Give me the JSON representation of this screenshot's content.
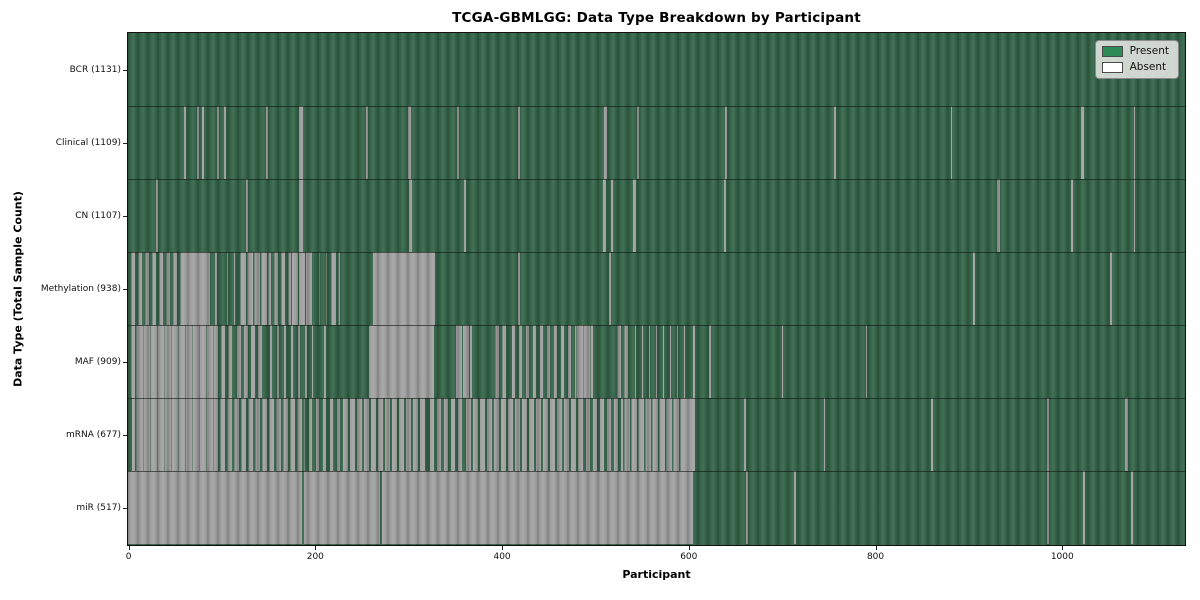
{
  "title": "TCGA-GBMLGG: Data Type Breakdown by Participant",
  "axes": {
    "xlabel": "Participant",
    "ylabel": "Data Type (Total Sample Count)"
  },
  "legend": {
    "present_label": "Present",
    "absent_label": "Absent"
  },
  "colors": {
    "present_legend": "#2e8b57",
    "absent_legend": "#ffffff",
    "present_plot": "#35654a",
    "absent_plot": "#a3a3a3"
  },
  "chart_data": {
    "type": "heatmap",
    "title": "TCGA-GBMLGG: Data Type Breakdown by Participant",
    "xlabel": "Participant",
    "ylabel": "Data Type (Total Sample Count)",
    "x_range": [
      0,
      1131
    ],
    "x_ticks": [
      0,
      200,
      400,
      600,
      800,
      1000
    ],
    "legend_entries": [
      "Present",
      "Absent"
    ],
    "rows": [
      {
        "label": "BCR (1131)",
        "data_type": "BCR",
        "total_samples": 1131,
        "spans": []
      },
      {
        "label": "Clinical (1109)",
        "data_type": "Clinical",
        "total_samples": 1109,
        "spans": [
          [
            60,
            62,
            0
          ],
          [
            74,
            76,
            0
          ],
          [
            79,
            81,
            0
          ],
          [
            95,
            97,
            0
          ],
          [
            103,
            105,
            0
          ],
          [
            148,
            150,
            0
          ],
          [
            183,
            187,
            0
          ],
          [
            255,
            257,
            0
          ],
          [
            300,
            303,
            0
          ],
          [
            352,
            354,
            0
          ],
          [
            418,
            420,
            0
          ],
          [
            510,
            513,
            0
          ],
          [
            545,
            547,
            0
          ],
          [
            639,
            642,
            0
          ],
          [
            756,
            758,
            0
          ],
          [
            881,
            883,
            0
          ],
          [
            1021,
            1024,
            0
          ],
          [
            1077,
            1079,
            0
          ]
        ]
      },
      {
        "label": "CN (1107)",
        "data_type": "CN",
        "total_samples": 1107,
        "spans": [
          [
            30,
            32,
            0
          ],
          [
            126,
            129,
            0
          ],
          [
            183,
            187,
            0
          ],
          [
            301,
            304,
            0
          ],
          [
            360,
            362,
            0
          ],
          [
            509,
            512,
            0
          ],
          [
            517,
            519,
            0
          ],
          [
            541,
            544,
            0
          ],
          [
            638,
            641,
            0
          ],
          [
            931,
            934,
            0
          ],
          [
            1010,
            1012,
            0
          ],
          [
            1077,
            1079,
            0
          ]
        ]
      },
      {
        "label": "Methylation (938)",
        "data_type": "Methylation",
        "total_samples": 938,
        "spans": [
          [
            0,
            58,
            0.5
          ],
          [
            58,
            88,
            0.02
          ],
          [
            88,
            100,
            0.75
          ],
          [
            100,
            119,
            0.85
          ],
          [
            119,
            153,
            0.22
          ],
          [
            153,
            175,
            0.5
          ],
          [
            175,
            198,
            0.12
          ],
          [
            198,
            215,
            0.9
          ],
          [
            215,
            227,
            0.35
          ],
          [
            262,
            329,
            0.02
          ],
          [
            418,
            420,
            0
          ],
          [
            515,
            517,
            0
          ],
          [
            905,
            907,
            0
          ],
          [
            1052,
            1054,
            0
          ]
        ]
      },
      {
        "label": "MAF (909)",
        "data_type": "MAF",
        "total_samples": 909,
        "spans": [
          [
            0,
            9,
            0.5
          ],
          [
            9,
            96,
            0.1
          ],
          [
            96,
            113,
            0.5
          ],
          [
            113,
            147,
            0.4
          ],
          [
            147,
            198,
            0.7
          ],
          [
            210,
            212,
            0
          ],
          [
            258,
            328,
            0.02
          ],
          [
            350,
            368,
            0.15
          ],
          [
            390,
            407,
            0.5
          ],
          [
            407,
            480,
            0.55
          ],
          [
            480,
            498,
            0.08
          ],
          [
            520,
            537,
            0.5
          ],
          [
            537,
            600,
            0.85
          ],
          [
            605,
            607,
            0
          ],
          [
            622,
            624,
            0
          ],
          [
            700,
            702,
            0
          ],
          [
            790,
            792,
            0
          ]
        ]
      },
      {
        "label": "mRNA (677)",
        "data_type": "mRNA",
        "total_samples": 677,
        "spans": [
          [
            0,
            9,
            0.6
          ],
          [
            9,
            96,
            0.07
          ],
          [
            96,
            190,
            0.35
          ],
          [
            190,
            228,
            0.55
          ],
          [
            228,
            320,
            0.3
          ],
          [
            320,
            360,
            0.45
          ],
          [
            360,
            487,
            0.3
          ],
          [
            487,
            530,
            0.45
          ],
          [
            530,
            596,
            0.25
          ],
          [
            596,
            607,
            0.02
          ],
          [
            660,
            662,
            0
          ],
          [
            745,
            747,
            0
          ],
          [
            860,
            862,
            0
          ],
          [
            984,
            986,
            0
          ],
          [
            1068,
            1071,
            0
          ]
        ]
      },
      {
        "label": "miR (517)",
        "data_type": "miR",
        "total_samples": 517,
        "spans": [
          [
            0,
            605,
            0.015
          ],
          [
            186,
            188,
            1
          ],
          [
            270,
            272,
            1
          ],
          [
            662,
            664,
            0
          ],
          [
            713,
            715,
            0
          ],
          [
            984,
            986,
            0
          ],
          [
            1023,
            1025,
            0
          ],
          [
            1074,
            1076,
            0
          ]
        ]
      }
    ]
  }
}
